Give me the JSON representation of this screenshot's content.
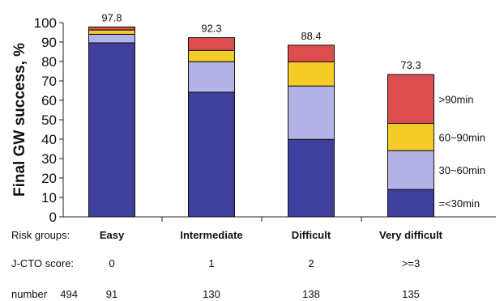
{
  "chart_data": {
    "type": "bar",
    "stacked": true,
    "ylabel": "Final GW success, %",
    "ylim": [
      0,
      100
    ],
    "yticks": [
      0,
      10,
      20,
      30,
      40,
      50,
      60,
      70,
      80,
      90,
      100
    ],
    "categories": [
      "Easy",
      "Intermediate",
      "Difficult",
      "Very difficult"
    ],
    "totals": [
      "97.8",
      "92.3",
      "88.4",
      "73.3"
    ],
    "series": [
      {
        "name": "=<30min",
        "color": "#3f3f9e",
        "values": [
          89.6,
          64.2,
          39.9,
          14.1
        ]
      },
      {
        "name": "30~60min",
        "color": "#b3b3e8",
        "values": [
          4.4,
          15.7,
          27.5,
          20.0
        ]
      },
      {
        "name": "60~90min",
        "color": "#f5cc28",
        "values": [
          2.2,
          5.8,
          12.4,
          14.0
        ]
      },
      {
        "name": ">90min",
        "color": "#dc4d50",
        "values": [
          1.6,
          6.6,
          8.6,
          25.2
        ]
      }
    ],
    "legend_placement": "right of last bar"
  },
  "rows": [
    {
      "label": "Risk groups:",
      "total": "",
      "values": [
        "Easy",
        "Intermediate",
        "Difficult",
        "Very difficult"
      ]
    },
    {
      "label": "J-CTO score:",
      "total": "",
      "values": [
        "0",
        "1",
        "2",
        ">=3"
      ]
    },
    {
      "label": "number",
      "total": "494",
      "values": [
        "91",
        "130",
        "138",
        "135"
      ]
    }
  ]
}
